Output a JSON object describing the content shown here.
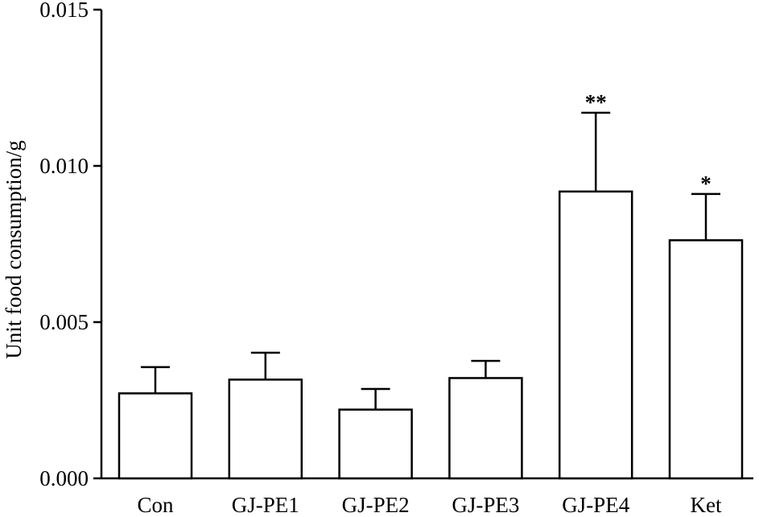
{
  "chart_data": {
    "type": "bar",
    "title": "",
    "xlabel": "",
    "ylabel": "Unit food consumption/g",
    "ylim": [
      0,
      0.015
    ],
    "yticks": [
      "0.000",
      "0.005",
      "0.010",
      "0.015"
    ],
    "ytick_values": [
      0,
      0.005,
      0.01,
      0.015
    ],
    "categories": [
      "Con",
      "GJ-PE1",
      "GJ-PE2",
      "GJ-PE3",
      "GJ-PE4",
      "Ket"
    ],
    "values": [
      0.00272,
      0.00316,
      0.0022,
      0.00321,
      0.00918,
      0.00762
    ],
    "errors": [
      0.00084,
      0.00086,
      0.00066,
      0.00055,
      0.00252,
      0.00148
    ],
    "significance": [
      "",
      "",
      "",
      "",
      "**",
      "*"
    ],
    "bar_fill": "#ffffff",
    "bar_stroke": "#000000",
    "grid": false,
    "legend": "none"
  }
}
